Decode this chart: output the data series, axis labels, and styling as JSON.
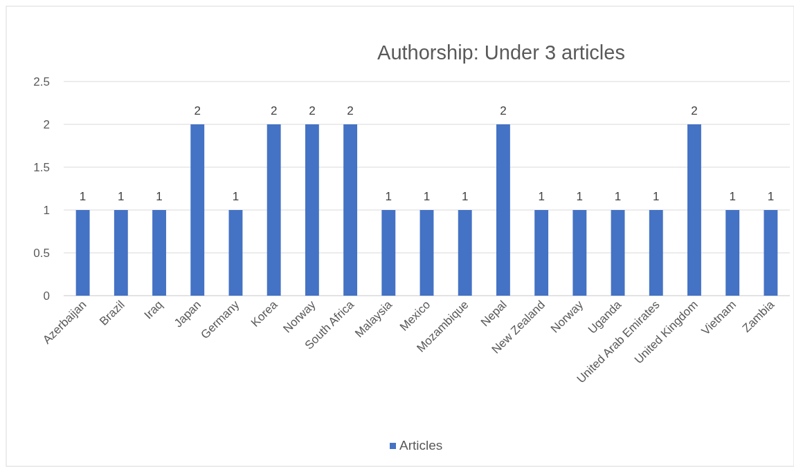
{
  "chart_data": {
    "type": "bar",
    "title": "Authorship: Under 3 articles",
    "categories": [
      "Azerbaijan",
      "Brazil",
      "Iraq",
      "Japan",
      "Germany",
      "Korea",
      "Norway",
      "South Africa",
      "Malaysia",
      "Mexico",
      "Mozambique",
      "Nepal",
      "New Zealand",
      "Norway",
      "Uganda",
      "United Arab Emirates",
      "United Kingdom",
      "Vietnam",
      "Zambia"
    ],
    "series": [
      {
        "name": "Articles",
        "color": "#4472c4",
        "values": [
          1,
          1,
          1,
          2,
          1,
          2,
          2,
          2,
          1,
          1,
          1,
          2,
          1,
          1,
          1,
          1,
          2,
          1,
          1
        ]
      }
    ],
    "ylim": [
      0,
      2.5
    ],
    "yticks": [
      0,
      0.5,
      1,
      1.5,
      2,
      2.5
    ],
    "grid": "y",
    "legend": "bottom",
    "data_labels": true
  }
}
